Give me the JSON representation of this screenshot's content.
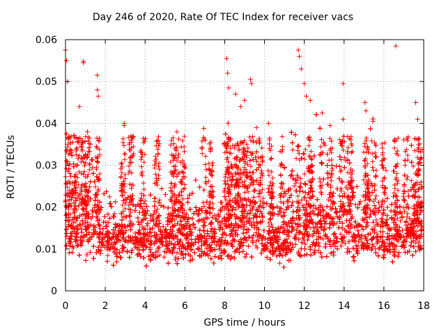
{
  "chart_data": {
    "type": "scatter",
    "title": "Day 246 of 2020, Rate Of TEC Index for receiver vacs",
    "xlabel": "GPS time / hours",
    "ylabel": "ROTI / TECUs",
    "xlim": [
      0,
      18
    ],
    "ylim": [
      0,
      0.06
    ],
    "x_ticks": [
      0,
      2,
      4,
      6,
      8,
      10,
      12,
      14,
      16,
      18
    ],
    "y_ticks": [
      0,
      0.01,
      0.02,
      0.03,
      0.04,
      0.05,
      0.06
    ],
    "x_tick_labels": [
      "0",
      "2",
      "4",
      "6",
      "8",
      "10",
      "12",
      "14",
      "16",
      "18"
    ],
    "y_tick_labels": [
      "0",
      "0.01",
      "0.02",
      "0.03",
      "0.04",
      "0.05",
      "0.06"
    ],
    "grid": true,
    "marker": "plus",
    "series": [
      {
        "name": "ROTI",
        "color": "#ff0000",
        "note": "dense cloud of ~thousands of points; baseline ~0.004–0.025 TECUs across 0–18 h",
        "outliers": [
          {
            "x": 0.0,
            "y": 0.0575
          },
          {
            "x": 0.05,
            "y": 0.055
          },
          {
            "x": 0.1,
            "y": 0.05
          },
          {
            "x": 0.05,
            "y": 0.0375
          },
          {
            "x": 0.7,
            "y": 0.044
          },
          {
            "x": 0.9,
            "y": 0.0545
          },
          {
            "x": 0.9,
            "y": 0.0548
          },
          {
            "x": 1.1,
            "y": 0.038
          },
          {
            "x": 1.6,
            "y": 0.0515
          },
          {
            "x": 1.6,
            "y": 0.048
          },
          {
            "x": 1.65,
            "y": 0.0465
          },
          {
            "x": 2.95,
            "y": 0.04
          },
          {
            "x": 2.95,
            "y": 0.0395
          },
          {
            "x": 3.3,
            "y": 0.036
          },
          {
            "x": 5.6,
            "y": 0.038
          },
          {
            "x": 6.95,
            "y": 0.0388
          },
          {
            "x": 8.1,
            "y": 0.0555
          },
          {
            "x": 8.15,
            "y": 0.052
          },
          {
            "x": 8.2,
            "y": 0.0485
          },
          {
            "x": 8.55,
            "y": 0.047
          },
          {
            "x": 8.8,
            "y": 0.044
          },
          {
            "x": 9.0,
            "y": 0.0455
          },
          {
            "x": 9.3,
            "y": 0.0505
          },
          {
            "x": 9.35,
            "y": 0.0495
          },
          {
            "x": 9.6,
            "y": 0.039
          },
          {
            "x": 10.2,
            "y": 0.04
          },
          {
            "x": 11.7,
            "y": 0.0575
          },
          {
            "x": 11.75,
            "y": 0.056
          },
          {
            "x": 11.85,
            "y": 0.053
          },
          {
            "x": 12.0,
            "y": 0.0495
          },
          {
            "x": 12.1,
            "y": 0.0465
          },
          {
            "x": 12.3,
            "y": 0.0455
          },
          {
            "x": 12.9,
            "y": 0.0425
          },
          {
            "x": 13.3,
            "y": 0.0395
          },
          {
            "x": 13.95,
            "y": 0.0495
          },
          {
            "x": 13.95,
            "y": 0.041
          },
          {
            "x": 15.05,
            "y": 0.045
          },
          {
            "x": 15.1,
            "y": 0.043
          },
          {
            "x": 15.45,
            "y": 0.0405
          },
          {
            "x": 16.6,
            "y": 0.0585
          },
          {
            "x": 17.6,
            "y": 0.045
          },
          {
            "x": 17.7,
            "y": 0.041
          }
        ]
      }
    ]
  }
}
